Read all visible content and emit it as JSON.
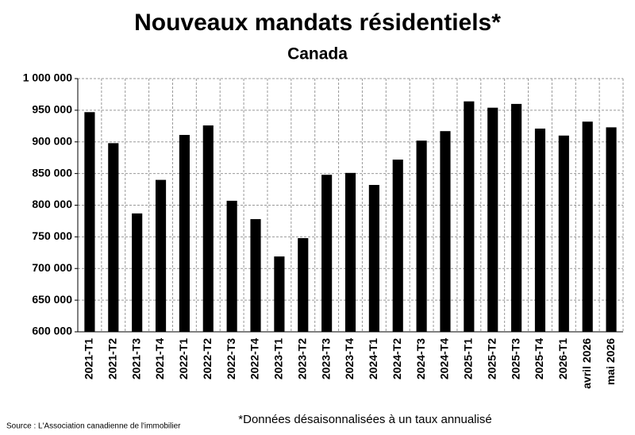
{
  "chart_data": {
    "type": "bar",
    "title": "Nouveaux mandats résidentiels*",
    "subtitle": "Canada",
    "categories": [
      "2021-T1",
      "2021-T2",
      "2021-T3",
      "2021-T4",
      "2022-T1",
      "2022-T2",
      "2022-T3",
      "2022-T4",
      "2023-T1",
      "2023-T2",
      "2023-T3",
      "2023-T4",
      "2024-T1",
      "2024-T2",
      "2024-T3",
      "2024-T4",
      "2025-T1",
      "2025-T2",
      "2025-T3",
      "2025-T4",
      "2026-T1",
      "avril 2026",
      "mai 2026"
    ],
    "values": [
      947000,
      898000,
      787000,
      840000,
      911000,
      926000,
      807000,
      778000,
      719000,
      748000,
      848000,
      851000,
      832000,
      872000,
      902000,
      917000,
      964000,
      954000,
      960000,
      921000,
      910000,
      932000,
      923000
    ],
    "color": "#000000",
    "ylim": [
      600000,
      1000000
    ],
    "yticks": [
      {
        "value": 600000,
        "label": "600 000"
      },
      {
        "value": 650000,
        "label": "650 000"
      },
      {
        "value": 700000,
        "label": "700 000"
      },
      {
        "value": 750000,
        "label": "750 000"
      },
      {
        "value": 800000,
        "label": "800 000"
      },
      {
        "value": 850000,
        "label": "850 000"
      },
      {
        "value": 900000,
        "label": "900 000"
      },
      {
        "value": 950000,
        "label": "950 000"
      },
      {
        "value": 1000000,
        "label": "1 000 000"
      }
    ],
    "grid": true,
    "source": "Source : L'Association canadienne de l'immobilier",
    "footnote": "*Données désaisonnalisées à un taux annualisé"
  }
}
